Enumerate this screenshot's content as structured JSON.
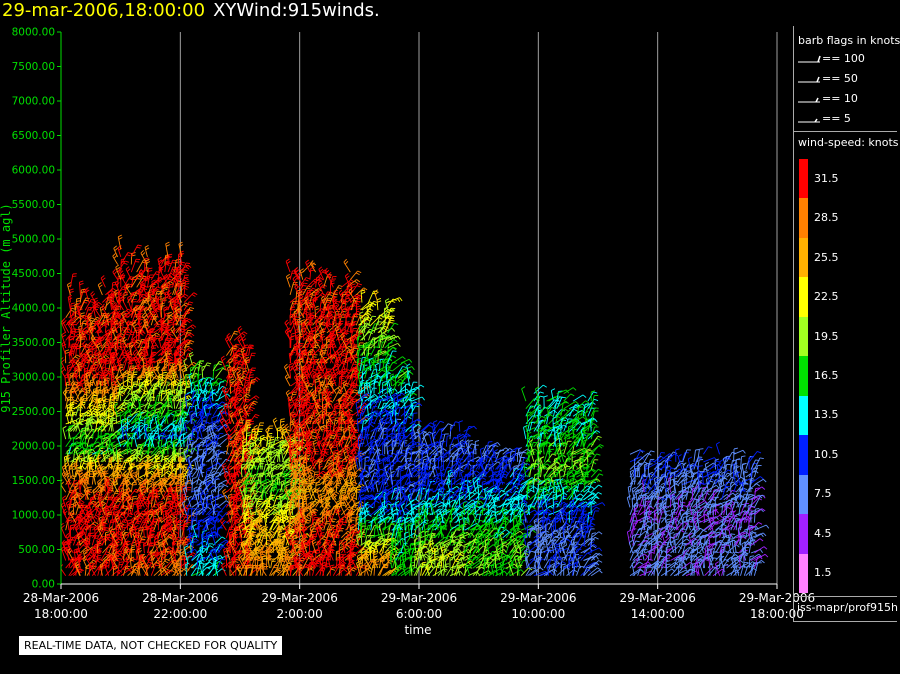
{
  "title": {
    "timestamp": "29-mar-2006,18:00:00",
    "name": "XYWind:915winds."
  },
  "notice": "REAL-TIME DATA, NOT CHECKED FOR QUALITY",
  "chart_data": {
    "type": "scatter",
    "subtype": "wind-barb time-height",
    "xlabel": "time",
    "ylabel": "915 Profiler Altitude (m agl)",
    "ylim": [
      0,
      8000
    ],
    "yticks": [
      "0.00",
      "500.00",
      "1000.00",
      "1500.00",
      "2000.00",
      "2500.00",
      "3000.00",
      "3500.00",
      "4000.00",
      "4500.00",
      "5000.00",
      "5500.00",
      "6000.00",
      "6500.00",
      "7000.00",
      "7500.00",
      "8000.00"
    ],
    "xlim_hours": [
      0,
      24
    ],
    "xticks": [
      {
        "date": "28-Mar-2006",
        "time": "18:00:00"
      },
      {
        "date": "28-Mar-2006",
        "time": "22:00:00"
      },
      {
        "date": "29-Mar-2006",
        "time": "2:00:00"
      },
      {
        "date": "29-Mar-2006",
        "time": "6:00:00"
      },
      {
        "date": "29-Mar-2006",
        "time": "10:00:00"
      },
      {
        "date": "29-Mar-2006",
        "time": "14:00:00"
      },
      {
        "date": "29-Mar-2006",
        "time": "18:00:00"
      }
    ],
    "grid": "vertical",
    "legend_position": "right",
    "barb_legend": {
      "title": "barb flags in knots",
      "entries": [
        "== 100",
        "== 50",
        "== 10",
        "== 5"
      ]
    },
    "colorbar": {
      "title": "wind-speed: knots",
      "units": "knots",
      "bins": [
        {
          "label": "31.5",
          "color": "#ff0000"
        },
        {
          "label": "28.5",
          "color": "#ff8000"
        },
        {
          "label": "25.5",
          "color": "#ffb000"
        },
        {
          "label": "22.5",
          "color": "#ffff00"
        },
        {
          "label": "19.5",
          "color": "#a0ff20"
        },
        {
          "label": "16.5",
          "color": "#00e000"
        },
        {
          "label": "13.5",
          "color": "#00ffff"
        },
        {
          "label": "10.5",
          "color": "#0020ff"
        },
        {
          "label": "7.5",
          "color": "#6090ff"
        },
        {
          "label": "4.5",
          "color": "#a020ff"
        },
        {
          "label": "1.5",
          "color": "#ff80ff"
        }
      ]
    },
    "source_label": "iss-mapr/prof915h",
    "regions": [
      {
        "x0": 0.1,
        "x1": 1.9,
        "top": 4350,
        "speed": [
          [
            4350,
            31
          ],
          [
            2900,
            31
          ],
          [
            2600,
            25
          ],
          [
            2300,
            21
          ],
          [
            1900,
            16
          ],
          [
            1500,
            28
          ],
          [
            1000,
            31
          ],
          [
            500,
            31
          ],
          [
            100,
            31
          ]
        ]
      },
      {
        "x0": 1.9,
        "x1": 4.2,
        "top": 4900,
        "speed": [
          [
            4900,
            31
          ],
          [
            3100,
            31
          ],
          [
            2800,
            22
          ],
          [
            2400,
            17
          ],
          [
            2100,
            12
          ],
          [
            1700,
            22
          ],
          [
            1200,
            31
          ],
          [
            700,
            31
          ],
          [
            100,
            29
          ]
        ]
      },
      {
        "x0": 4.2,
        "x1": 5.3,
        "top": 3300,
        "speed": [
          [
            3300,
            22
          ],
          [
            2600,
            12
          ],
          [
            2000,
            8
          ],
          [
            1400,
            8
          ],
          [
            900,
            10
          ],
          [
            400,
            12
          ],
          [
            100,
            14
          ]
        ]
      },
      {
        "x0": 5.5,
        "x1": 6.3,
        "top": 3700,
        "speed": [
          [
            3700,
            31
          ],
          [
            3300,
            31
          ],
          [
            2400,
            31
          ],
          [
            1800,
            31
          ]
        ]
      },
      {
        "x0": 6.0,
        "x1": 7.9,
        "top": 2300,
        "speed": [
          [
            2300,
            26
          ],
          [
            1800,
            20
          ],
          [
            1300,
            18
          ],
          [
            900,
            23
          ],
          [
            500,
            25
          ],
          [
            200,
            28
          ]
        ]
      },
      {
        "x0": 7.6,
        "x1": 9.9,
        "top": 4650,
        "speed": [
          [
            4650,
            31
          ],
          [
            2700,
            31
          ],
          [
            2300,
            31
          ],
          [
            1800,
            31
          ],
          [
            1200,
            26
          ],
          [
            800,
            30
          ],
          [
            200,
            31
          ]
        ]
      },
      {
        "x0": 9.9,
        "x1": 11.0,
        "top": 4200,
        "speed": [
          [
            4200,
            23
          ],
          [
            3400,
            18
          ],
          [
            2800,
            14
          ],
          [
            2200,
            10
          ],
          [
            1600,
            9
          ],
          [
            1000,
            12
          ],
          [
            500,
            21
          ],
          [
            200,
            28
          ]
        ]
      },
      {
        "x0": 11.0,
        "x1": 11.8,
        "top": 3300,
        "speed": [
          [
            3300,
            19
          ],
          [
            2600,
            13
          ],
          [
            1900,
            9
          ],
          [
            1300,
            10
          ],
          [
            800,
            14
          ],
          [
            300,
            17
          ]
        ]
      },
      {
        "x0": 11.8,
        "x1": 13.5,
        "top": 2300,
        "speed": [
          [
            2300,
            10
          ],
          [
            1700,
            9
          ],
          [
            1200,
            12
          ],
          [
            800,
            16
          ],
          [
            400,
            20
          ],
          [
            200,
            20
          ]
        ]
      },
      {
        "x0": 13.5,
        "x1": 15.5,
        "top": 2000,
        "speed": [
          [
            2000,
            8
          ],
          [
            1400,
            11
          ],
          [
            900,
            15
          ],
          [
            500,
            18
          ],
          [
            200,
            18
          ]
        ]
      },
      {
        "x0": 15.5,
        "x1": 17.8,
        "top": 2800,
        "speed": [
          [
            2800,
            16
          ],
          [
            2200,
            15
          ],
          [
            1600,
            19
          ],
          [
            1000,
            11
          ],
          [
            600,
            9
          ],
          [
            300,
            8
          ]
        ]
      },
      {
        "x0": 19.0,
        "x1": 23.3,
        "top": 1900,
        "speed": [
          [
            1900,
            9
          ],
          [
            1400,
            8
          ],
          [
            900,
            6
          ],
          [
            500,
            7
          ],
          [
            200,
            7
          ]
        ]
      }
    ]
  }
}
